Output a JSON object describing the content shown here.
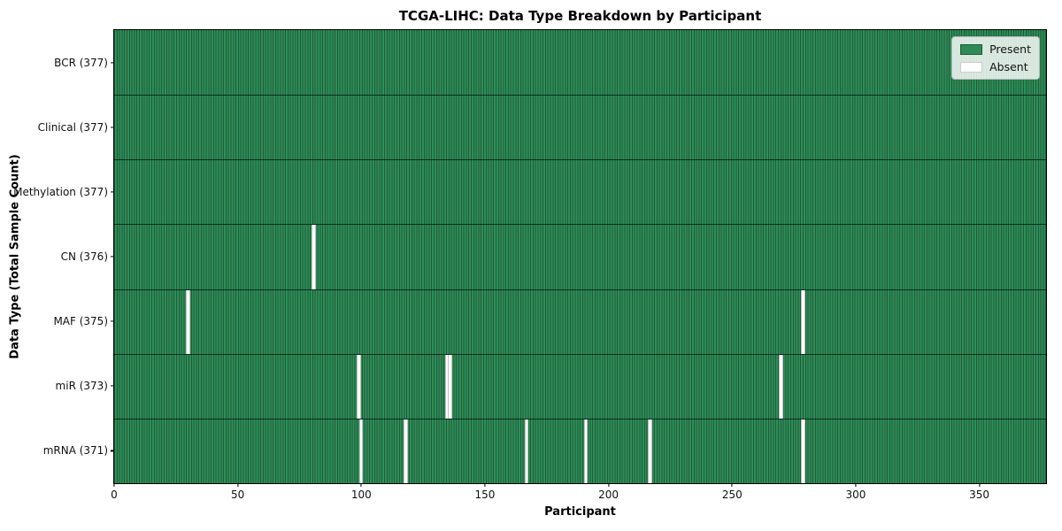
{
  "title": "TCGA-LIHC: Data Type Breakdown by Participant",
  "x_axis": {
    "label": "Participant",
    "ticks": [
      0,
      50,
      100,
      150,
      200,
      250,
      300,
      350
    ],
    "min": 0,
    "max": 377
  },
  "y_axis": {
    "label": "Data Type (Total Sample Count)"
  },
  "legend": {
    "position": "upper right",
    "items": [
      {
        "label": "Present",
        "color": "#2e8b57",
        "border": "#1d5c39"
      },
      {
        "label": "Absent",
        "color": "#ffffff",
        "border": "#cccccc"
      }
    ]
  },
  "colors": {
    "present_fill": "#2e8b57",
    "bar_edge": "#1d5c39",
    "absent_fill": "#ffffff",
    "frame": "#000000"
  },
  "chart_data": {
    "type": "heatmap",
    "title": "TCGA-LIHC: Data Type Breakdown by Participant",
    "xlabel": "Participant",
    "ylabel": "Data Type (Total Sample Count)",
    "x_range": [
      0,
      377
    ],
    "n_participants": 377,
    "grid": false,
    "legend_entries": [
      "Present",
      "Absent"
    ],
    "legend_position": "upper right",
    "rows": [
      {
        "label": "BCR (377)",
        "name": "BCR",
        "total": 377,
        "absent_participants": []
      },
      {
        "label": "Clinical (377)",
        "name": "Clinical",
        "total": 377,
        "absent_participants": []
      },
      {
        "label": "Methylation (377)",
        "name": "Methylation",
        "total": 377,
        "absent_participants": []
      },
      {
        "label": "CN (376)",
        "name": "CN",
        "total": 376,
        "absent_participants": [
          80
        ]
      },
      {
        "label": "MAF (375)",
        "name": "MAF",
        "total": 375,
        "absent_participants": [
          29,
          278
        ]
      },
      {
        "label": "miR (373)",
        "name": "miR",
        "total": 373,
        "absent_participants": [
          98,
          134,
          135,
          269
        ]
      },
      {
        "label": "mRNA (371)",
        "name": "mRNA",
        "total": 371,
        "absent_participants": [
          99,
          117,
          166,
          190,
          216,
          278
        ]
      }
    ]
  }
}
